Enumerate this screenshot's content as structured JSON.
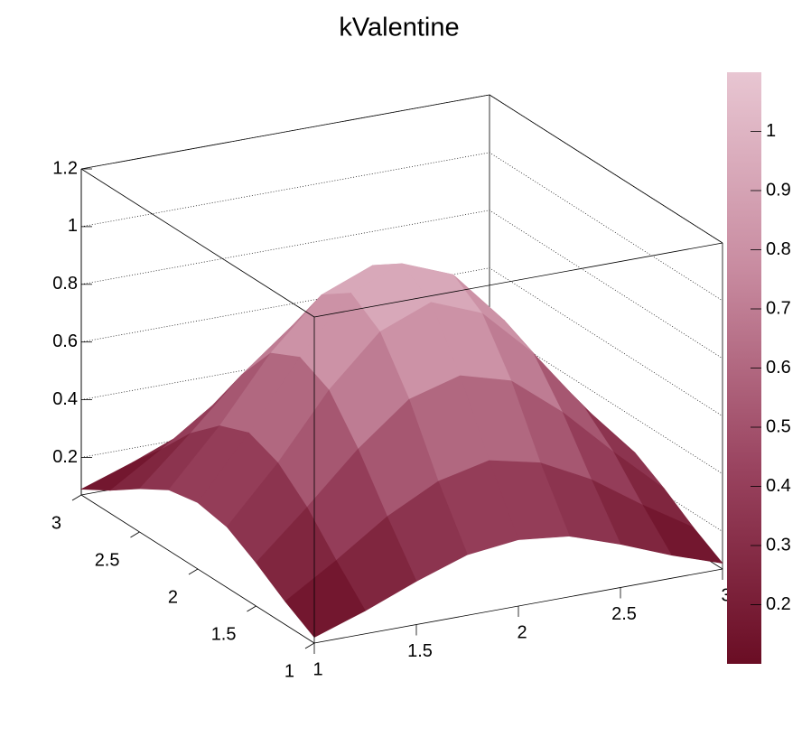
{
  "chart_data": {
    "type": "surface",
    "title": "kValentine",
    "x": [
      1,
      1.25,
      1.5,
      1.75,
      2,
      2.25,
      2.5,
      2.75,
      3
    ],
    "y": [
      1,
      1.25,
      1.5,
      1.75,
      2,
      2.25,
      2.5,
      2.75,
      3
    ],
    "z": [
      [
        0.09,
        0.15,
        0.22,
        0.28,
        0.3,
        0.28,
        0.22,
        0.15,
        0.09
      ],
      [
        0.15,
        0.26,
        0.38,
        0.47,
        0.51,
        0.47,
        0.38,
        0.26,
        0.15
      ],
      [
        0.22,
        0.38,
        0.55,
        0.69,
        0.74,
        0.69,
        0.55,
        0.38,
        0.22
      ],
      [
        0.28,
        0.47,
        0.69,
        0.86,
        0.93,
        0.86,
        0.69,
        0.47,
        0.28
      ],
      [
        0.3,
        0.51,
        0.74,
        0.93,
        1.0,
        0.93,
        0.74,
        0.51,
        0.3
      ],
      [
        0.28,
        0.47,
        0.69,
        0.86,
        0.93,
        0.86,
        0.69,
        0.47,
        0.28
      ],
      [
        0.22,
        0.38,
        0.55,
        0.69,
        0.74,
        0.69,
        0.55,
        0.38,
        0.22
      ],
      [
        0.15,
        0.26,
        0.38,
        0.47,
        0.51,
        0.47,
        0.38,
        0.26,
        0.15
      ],
      [
        0.09,
        0.15,
        0.22,
        0.28,
        0.3,
        0.28,
        0.22,
        0.15,
        0.09
      ]
    ],
    "xlim": [
      1,
      3
    ],
    "xticks": [
      1,
      1.5,
      2,
      2.5,
      3
    ],
    "ylim": [
      1,
      3
    ],
    "yticks": [
      1,
      1.5,
      2,
      2.5,
      3
    ],
    "zlim": [
      0.07,
      1.2
    ],
    "zticks": [
      0.2,
      0.4,
      0.6,
      0.8,
      1,
      1.2
    ],
    "colorbar_lim": [
      0.1,
      1.1
    ],
    "colorbar_ticks": [
      0.2,
      0.3,
      0.4,
      0.5,
      0.6,
      0.7,
      0.8,
      0.9,
      1
    ],
    "palette": [
      "#6a0d24",
      "#9a4460",
      "#c88ba0",
      "#e8c6d2"
    ],
    "grid": true
  }
}
